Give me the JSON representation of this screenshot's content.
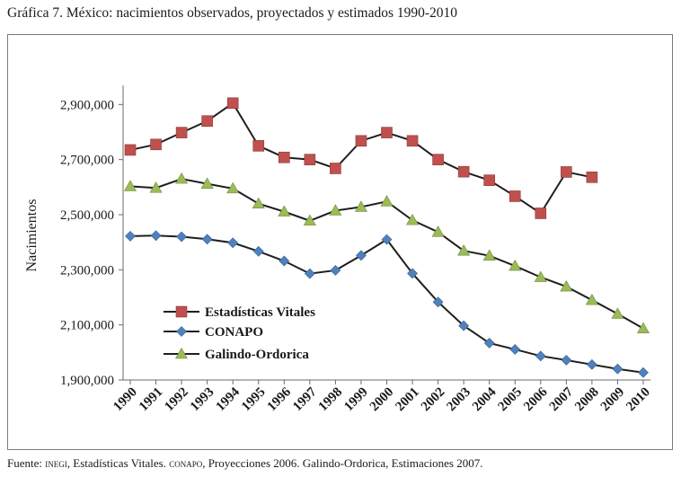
{
  "figure": {
    "title": "Gráfica 7. México: nacimientos observados, proyectados y estimados 1990-2010",
    "source": {
      "prefix": "Fuente: ",
      "org1": "INEGI",
      "part1": ", Estadísticas Vitales. ",
      "org2": "CONAPO",
      "part2": ", Proyecciones 2006. Galindo-Ordorica, Estimaciones 2007."
    }
  },
  "chart_data": {
    "type": "line",
    "title": "",
    "xlabel": "",
    "ylabel": "Nacimientos",
    "ylim": [
      1900000,
      2950000
    ],
    "yticks": [
      1900000,
      2100000,
      2300000,
      2500000,
      2700000,
      2900000
    ],
    "ytick_labels": [
      "1,900,000",
      "2,100,000",
      "2,300,000",
      "2,500,000",
      "2,700,000",
      "2,900,000"
    ],
    "categories": [
      "1990",
      "1991",
      "1992",
      "1993",
      "1994",
      "1995",
      "1996",
      "1997",
      "1998",
      "1999",
      "2000",
      "2001",
      "2002",
      "2003",
      "2004",
      "2005",
      "2006",
      "2007",
      "2008",
      "2009",
      "2010"
    ],
    "grid": false,
    "legend_position": "bottom-left",
    "series": [
      {
        "name": "Estadísticas Vitales",
        "marker": "square",
        "color": "#c0504d",
        "values": [
          2735000,
          2755000,
          2798000,
          2840000,
          2905000,
          2750000,
          2708000,
          2700000,
          2668000,
          2768000,
          2798000,
          2768000,
          2700000,
          2656000,
          2625000,
          2567000,
          2505000,
          2655000,
          2636000,
          null,
          null
        ]
      },
      {
        "name": "CONAPO",
        "marker": "diamond",
        "color": "#4f81bd",
        "values": [
          2422000,
          2424000,
          2420000,
          2411000,
          2398000,
          2367000,
          2332000,
          2286000,
          2298000,
          2352000,
          2410000,
          2287000,
          2183000,
          2097000,
          2034000,
          2011000,
          1987000,
          1972000,
          1956000,
          1940000,
          1927000
        ]
      },
      {
        "name": "Galindo-Ordorica",
        "marker": "triangle",
        "color": "#9bbb59",
        "values": [
          2603000,
          2597000,
          2630000,
          2612000,
          2595000,
          2540000,
          2511000,
          2478000,
          2515000,
          2528000,
          2548000,
          2480000,
          2437000,
          2369000,
          2351000,
          2314000,
          2273000,
          2239000,
          2190000,
          2140000,
          2087000
        ]
      }
    ]
  }
}
